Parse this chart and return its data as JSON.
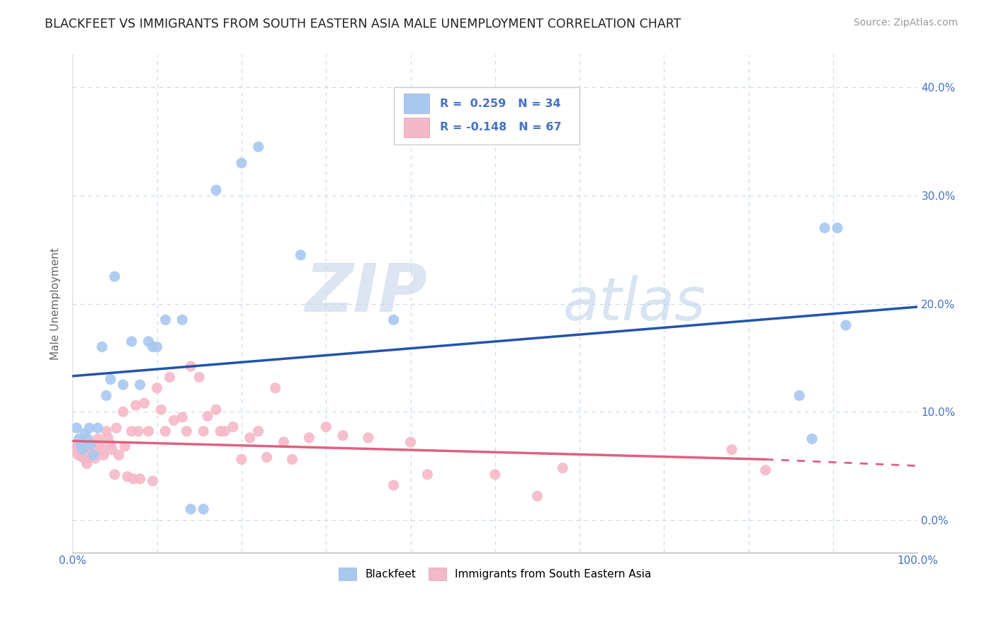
{
  "title": "BLACKFEET VS IMMIGRANTS FROM SOUTH EASTERN ASIA MALE UNEMPLOYMENT CORRELATION CHART",
  "source": "Source: ZipAtlas.com",
  "ylabel": "Male Unemployment",
  "background_color": "#ffffff",
  "watermark_zip": "ZIP",
  "watermark_atlas": "atlas",
  "blue_color": "#a8c8f0",
  "pink_color": "#f5b8c8",
  "blue_line_color": "#2255aa",
  "pink_line_color": "#e06080",
  "xlim": [
    0.0,
    1.0
  ],
  "ylim": [
    -0.03,
    0.43
  ],
  "xtick_pos": [
    0.0,
    0.1,
    0.2,
    0.3,
    0.4,
    0.5,
    0.6,
    0.7,
    0.8,
    0.9,
    1.0
  ],
  "ytick_pos": [
    0.0,
    0.1,
    0.2,
    0.3,
    0.4
  ],
  "yticklabels_right": [
    "0.0%",
    "10.0%",
    "20.0%",
    "30.0%",
    "40.0%"
  ],
  "blue_x": [
    0.005,
    0.008,
    0.01,
    0.012,
    0.015,
    0.018,
    0.02,
    0.022,
    0.025,
    0.03,
    0.035,
    0.04,
    0.045,
    0.05,
    0.06,
    0.07,
    0.08,
    0.09,
    0.095,
    0.1,
    0.11,
    0.13,
    0.14,
    0.155,
    0.17,
    0.2,
    0.22,
    0.27,
    0.38,
    0.86,
    0.875,
    0.89,
    0.905,
    0.915
  ],
  "blue_y": [
    0.085,
    0.075,
    0.07,
    0.065,
    0.08,
    0.075,
    0.085,
    0.07,
    0.06,
    0.085,
    0.16,
    0.115,
    0.13,
    0.225,
    0.125,
    0.165,
    0.125,
    0.165,
    0.16,
    0.16,
    0.185,
    0.185,
    0.01,
    0.01,
    0.305,
    0.33,
    0.345,
    0.245,
    0.185,
    0.115,
    0.075,
    0.27,
    0.27,
    0.18
  ],
  "pink_x": [
    0.002,
    0.005,
    0.007,
    0.01,
    0.012,
    0.015,
    0.017,
    0.02,
    0.022,
    0.025,
    0.027,
    0.03,
    0.032,
    0.035,
    0.037,
    0.04,
    0.042,
    0.045,
    0.047,
    0.05,
    0.052,
    0.055,
    0.06,
    0.062,
    0.065,
    0.07,
    0.072,
    0.075,
    0.078,
    0.08,
    0.085,
    0.09,
    0.095,
    0.1,
    0.105,
    0.11,
    0.115,
    0.12,
    0.13,
    0.135,
    0.14,
    0.15,
    0.155,
    0.16,
    0.17,
    0.175,
    0.18,
    0.19,
    0.2,
    0.21,
    0.22,
    0.23,
    0.24,
    0.25,
    0.26,
    0.28,
    0.3,
    0.32,
    0.35,
    0.38,
    0.4,
    0.42,
    0.5,
    0.55,
    0.58,
    0.78,
    0.82
  ],
  "pink_y": [
    0.065,
    0.068,
    0.06,
    0.063,
    0.058,
    0.056,
    0.052,
    0.068,
    0.062,
    0.062,
    0.057,
    0.075,
    0.07,
    0.065,
    0.06,
    0.082,
    0.076,
    0.07,
    0.065,
    0.042,
    0.085,
    0.06,
    0.1,
    0.068,
    0.04,
    0.082,
    0.038,
    0.106,
    0.082,
    0.038,
    0.108,
    0.082,
    0.036,
    0.122,
    0.102,
    0.082,
    0.132,
    0.092,
    0.095,
    0.082,
    0.142,
    0.132,
    0.082,
    0.096,
    0.102,
    0.082,
    0.082,
    0.086,
    0.056,
    0.076,
    0.082,
    0.058,
    0.122,
    0.072,
    0.056,
    0.076,
    0.086,
    0.078,
    0.076,
    0.032,
    0.072,
    0.042,
    0.042,
    0.022,
    0.048,
    0.065,
    0.046
  ],
  "blue_line_x0": 0.0,
  "blue_line_x1": 1.0,
  "blue_line_y0": 0.133,
  "blue_line_y1": 0.197,
  "pink_line_x0": 0.0,
  "pink_line_x1": 0.82,
  "pink_line_x1_dash": 1.0,
  "pink_line_y0": 0.073,
  "pink_line_y1": 0.056,
  "pink_line_y1_dash": 0.05,
  "legend_r1": "R =  0.259   N = 34",
  "legend_r2": "R = -0.148   N = 67",
  "label_blackfeet": "Blackfeet",
  "label_immigrants": "Immigrants from South Eastern Asia"
}
